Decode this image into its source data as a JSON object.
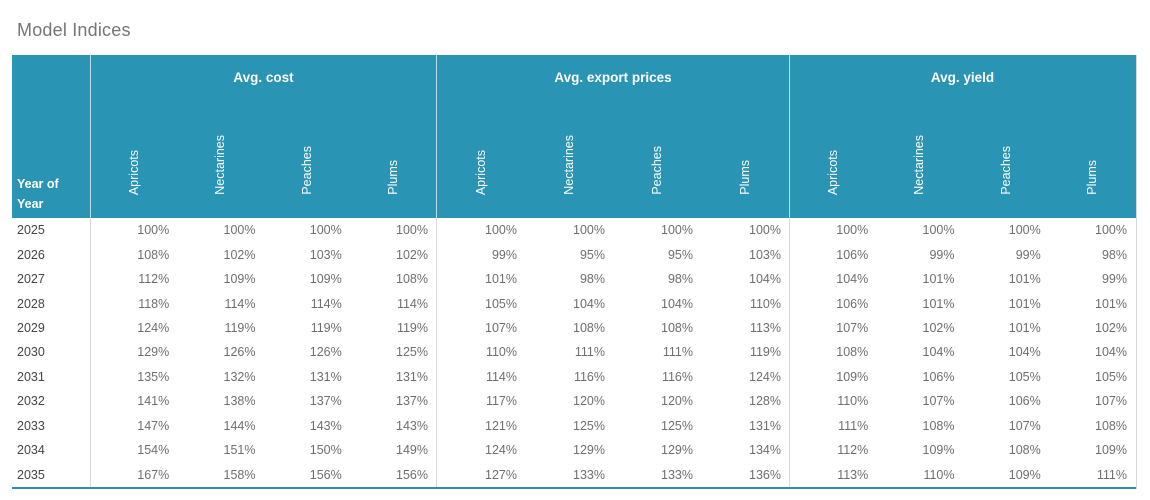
{
  "title": "Model Indices",
  "table": {
    "row_header": "Year of Year",
    "unit": "%",
    "groups": [
      {
        "label": "Avg. cost",
        "key": "avg_cost",
        "columns": [
          "Apricots",
          "Nectarines",
          "Peaches",
          "Plums"
        ]
      },
      {
        "label": "Avg. export prices",
        "key": "avg_export_prices",
        "columns": [
          "Apricots",
          "Nectarines",
          "Peaches",
          "Plums"
        ]
      },
      {
        "label": "Avg. yield",
        "key": "avg_yield",
        "columns": [
          "Apricots",
          "Nectarines",
          "Peaches",
          "Plums"
        ]
      }
    ],
    "rows": [
      {
        "year": "2025",
        "avg_cost": [
          100,
          100,
          100,
          100
        ],
        "avg_export_prices": [
          100,
          100,
          100,
          100
        ],
        "avg_yield": [
          100,
          100,
          100,
          100
        ]
      },
      {
        "year": "2026",
        "avg_cost": [
          108,
          102,
          103,
          102
        ],
        "avg_export_prices": [
          99,
          95,
          95,
          103
        ],
        "avg_yield": [
          106,
          99,
          99,
          98
        ]
      },
      {
        "year": "2027",
        "avg_cost": [
          112,
          109,
          109,
          108
        ],
        "avg_export_prices": [
          101,
          98,
          98,
          104
        ],
        "avg_yield": [
          104,
          101,
          101,
          99
        ]
      },
      {
        "year": "2028",
        "avg_cost": [
          118,
          114,
          114,
          114
        ],
        "avg_export_prices": [
          105,
          104,
          104,
          110
        ],
        "avg_yield": [
          106,
          101,
          101,
          101
        ]
      },
      {
        "year": "2029",
        "avg_cost": [
          124,
          119,
          119,
          119
        ],
        "avg_export_prices": [
          107,
          108,
          108,
          113
        ],
        "avg_yield": [
          107,
          102,
          101,
          102
        ]
      },
      {
        "year": "2030",
        "avg_cost": [
          129,
          126,
          126,
          125
        ],
        "avg_export_prices": [
          110,
          111,
          111,
          119
        ],
        "avg_yield": [
          108,
          104,
          104,
          104
        ]
      },
      {
        "year": "2031",
        "avg_cost": [
          135,
          132,
          131,
          131
        ],
        "avg_export_prices": [
          114,
          116,
          116,
          124
        ],
        "avg_yield": [
          109,
          106,
          105,
          105
        ]
      },
      {
        "year": "2032",
        "avg_cost": [
          141,
          138,
          137,
          137
        ],
        "avg_export_prices": [
          117,
          120,
          120,
          128
        ],
        "avg_yield": [
          110,
          107,
          106,
          107
        ]
      },
      {
        "year": "2033",
        "avg_cost": [
          147,
          144,
          143,
          143
        ],
        "avg_export_prices": [
          121,
          125,
          125,
          131
        ],
        "avg_yield": [
          111,
          108,
          107,
          108
        ]
      },
      {
        "year": "2034",
        "avg_cost": [
          154,
          151,
          150,
          149
        ],
        "avg_export_prices": [
          124,
          129,
          129,
          134
        ],
        "avg_yield": [
          112,
          109,
          108,
          109
        ]
      },
      {
        "year": "2035",
        "avg_cost": [
          167,
          158,
          156,
          156
        ],
        "avg_export_prices": [
          127,
          133,
          133,
          136
        ],
        "avg_yield": [
          113,
          110,
          109,
          111
        ]
      }
    ]
  },
  "colors": {
    "header_bg": "#2994b3",
    "header_text": "#ffffff",
    "bottom_border": "#2f8fb0",
    "grid_line": "#d9d9d9",
    "title_text": "#757575",
    "year_text": "#454545",
    "value_text": "#6e6e6e"
  },
  "chart_data": {
    "type": "table",
    "title": "Model Indices",
    "row_header": "Year of Year",
    "unit": "percent index",
    "years": [
      "2025",
      "2026",
      "2027",
      "2028",
      "2029",
      "2030",
      "2031",
      "2032",
      "2033",
      "2034",
      "2035"
    ],
    "column_groups": [
      "Avg. cost",
      "Avg. export prices",
      "Avg. yield"
    ],
    "sub_columns": [
      "Apricots",
      "Nectarines",
      "Peaches",
      "Plums"
    ],
    "series": [
      {
        "name": "Avg. cost - Apricots",
        "values": [
          100,
          108,
          112,
          118,
          124,
          129,
          135,
          141,
          147,
          154,
          167
        ]
      },
      {
        "name": "Avg. cost - Nectarines",
        "values": [
          100,
          102,
          109,
          114,
          119,
          126,
          132,
          138,
          144,
          151,
          158
        ]
      },
      {
        "name": "Avg. cost - Peaches",
        "values": [
          100,
          103,
          109,
          114,
          119,
          126,
          131,
          137,
          143,
          150,
          156
        ]
      },
      {
        "name": "Avg. cost - Plums",
        "values": [
          100,
          102,
          108,
          114,
          119,
          125,
          131,
          137,
          143,
          149,
          156
        ]
      },
      {
        "name": "Avg. export prices - Apricots",
        "values": [
          100,
          99,
          101,
          105,
          107,
          110,
          114,
          117,
          121,
          124,
          127
        ]
      },
      {
        "name": "Avg. export prices - Nectarines",
        "values": [
          100,
          95,
          98,
          104,
          108,
          111,
          116,
          120,
          125,
          129,
          133
        ]
      },
      {
        "name": "Avg. export prices - Peaches",
        "values": [
          100,
          95,
          98,
          104,
          108,
          111,
          116,
          120,
          125,
          129,
          133
        ]
      },
      {
        "name": "Avg. export prices - Plums",
        "values": [
          100,
          103,
          104,
          110,
          113,
          119,
          124,
          128,
          131,
          134,
          136
        ]
      },
      {
        "name": "Avg. yield - Apricots",
        "values": [
          100,
          106,
          104,
          106,
          107,
          108,
          109,
          110,
          111,
          112,
          113
        ]
      },
      {
        "name": "Avg. yield - Nectarines",
        "values": [
          100,
          99,
          101,
          101,
          102,
          104,
          106,
          107,
          108,
          109,
          110
        ]
      },
      {
        "name": "Avg. yield - Peaches",
        "values": [
          100,
          99,
          101,
          101,
          101,
          104,
          105,
          106,
          107,
          108,
          109
        ]
      },
      {
        "name": "Avg. yield - Plums",
        "values": [
          100,
          98,
          99,
          101,
          102,
          104,
          105,
          107,
          108,
          109,
          111
        ]
      }
    ]
  }
}
